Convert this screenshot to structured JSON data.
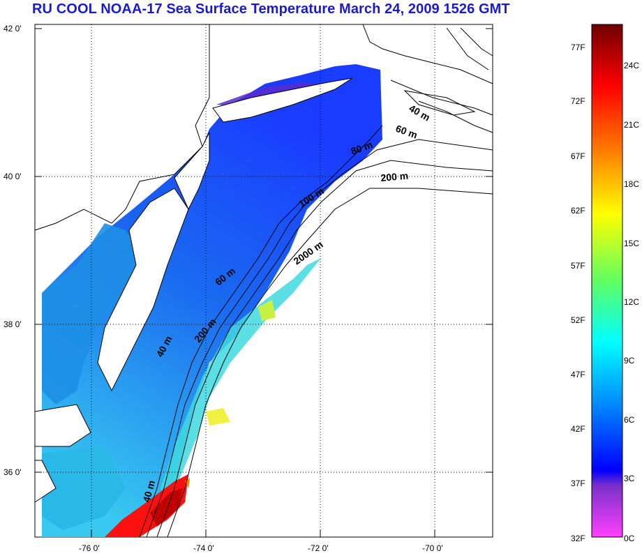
{
  "title": "RU COOL  NOAA-17 Sea Surface Temperature March 24, 2009 1526 GMT",
  "lat_labels": [
    "42 0'",
    "40 0'",
    "38 0'",
    "36 0'"
  ],
  "lon_labels": [
    "-76 0'",
    "-74 0'",
    "-72 0'",
    "-70 0'"
  ],
  "isobaths": [
    "40 m",
    "60 m",
    "80 m",
    "200 m",
    "100 m",
    "2000 m",
    "60 m",
    "200 m",
    "40 m",
    "40 m"
  ],
  "colorbar": {
    "fahrenheit": [
      "77F",
      "72F",
      "67F",
      "62F",
      "57F",
      "52F",
      "47F",
      "42F",
      "37F",
      "32F"
    ],
    "celsius": [
      "24C",
      "21C",
      "18C",
      "15C",
      "12C",
      "9C",
      "6C",
      "3C",
      "0C"
    ],
    "colors": [
      "#7a0000",
      "#ff0000",
      "#ff8000",
      "#ffff00",
      "#60ff60",
      "#00ffff",
      "#0080ff",
      "#0000ff",
      "#8030c0",
      "#ff40ff"
    ]
  }
}
